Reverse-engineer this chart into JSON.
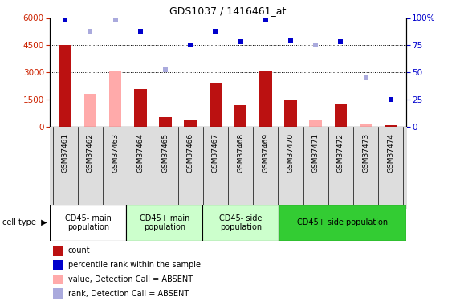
{
  "title": "GDS1037 / 1416461_at",
  "samples": [
    "GSM37461",
    "GSM37462",
    "GSM37463",
    "GSM37464",
    "GSM37465",
    "GSM37466",
    "GSM37467",
    "GSM37468",
    "GSM37469",
    "GSM37470",
    "GSM37471",
    "GSM37472",
    "GSM37473",
    "GSM37474"
  ],
  "count_values": [
    4500,
    null,
    null,
    2050,
    500,
    400,
    2400,
    1200,
    3100,
    1450,
    null,
    1250,
    null,
    70
  ],
  "count_absent": [
    null,
    1800,
    3100,
    null,
    null,
    null,
    null,
    null,
    null,
    null,
    350,
    null,
    100,
    null
  ],
  "rank_present": [
    99,
    null,
    null,
    88,
    null,
    75,
    88,
    78,
    99,
    80,
    null,
    78,
    null,
    25
  ],
  "rank_absent": [
    null,
    88,
    98,
    null,
    52,
    null,
    null,
    null,
    null,
    null,
    75,
    null,
    45,
    null
  ],
  "ylim_left": [
    0,
    6000
  ],
  "ylim_right": [
    0,
    100
  ],
  "yticks_left": [
    0,
    1500,
    3000,
    4500,
    6000
  ],
  "yticks_right": [
    0,
    25,
    50,
    75,
    100
  ],
  "groups": [
    {
      "label": "CD45- main\npopulation",
      "start": 0,
      "end": 3,
      "color": "#ffffff"
    },
    {
      "label": "CD45+ main\npopulation",
      "start": 3,
      "end": 6,
      "color": "#ccffcc"
    },
    {
      "label": "CD45- side\npopulation",
      "start": 6,
      "end": 9,
      "color": "#ccffcc"
    },
    {
      "label": "CD45+ side population",
      "start": 9,
      "end": 14,
      "color": "#33cc33"
    }
  ],
  "bar_width": 0.5,
  "bar_color_present": "#bb1111",
  "bar_color_absent": "#ffaaaa",
  "marker_color_present": "#0000cc",
  "marker_color_absent": "#aaaadd",
  "background_color": "#ffffff"
}
